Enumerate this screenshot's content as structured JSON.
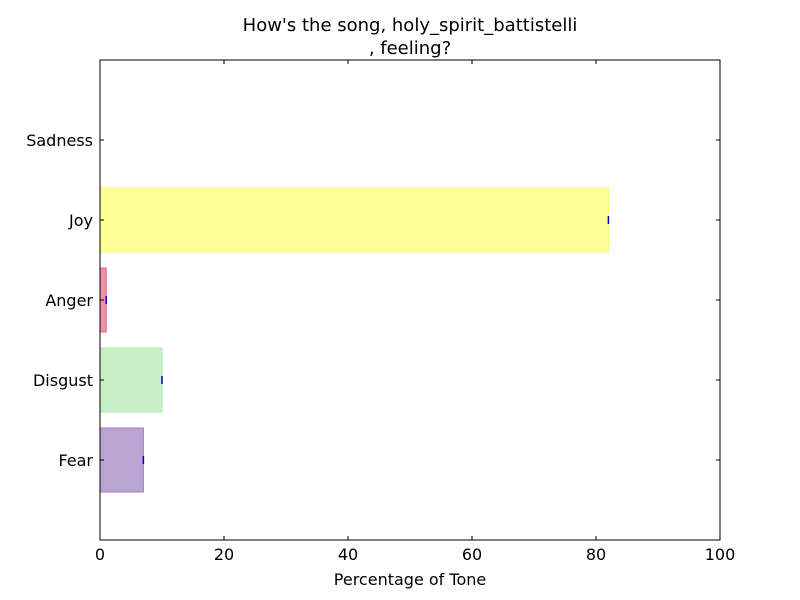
{
  "chart_data": {
    "type": "bar",
    "orientation": "horizontal",
    "title_lines": [
      "How's the song, holy_spirit_battistelli",
      ", feeling?"
    ],
    "xlabel": "Percentage of Tone",
    "ylabel": "",
    "xlim": [
      0,
      100
    ],
    "xticks": [
      0,
      20,
      40,
      60,
      80,
      100
    ],
    "categories": [
      "Fear",
      "Disgust",
      "Anger",
      "Joy",
      "Sadness"
    ],
    "values": [
      7,
      10,
      1,
      82,
      0
    ],
    "colors": [
      "#b9a4d3",
      "#c8f1c8",
      "#ef8fa6",
      "#ffff96",
      "#9ec6e8"
    ],
    "edge_colors": [
      "#a07cc6",
      "#a8e6a8",
      "#e06888",
      "#f5f57a",
      "#7fb0d8"
    ],
    "error_marker_color": "#0000cc",
    "grid": false,
    "legend": "none"
  }
}
